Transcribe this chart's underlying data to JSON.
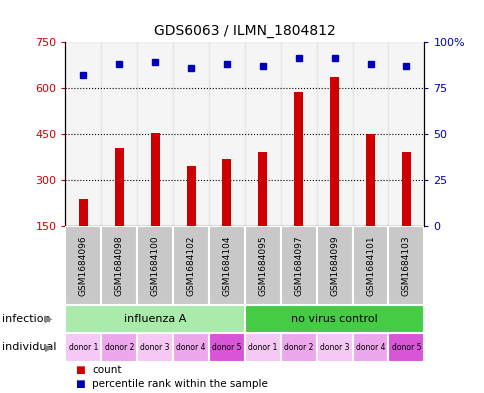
{
  "title": "GDS6063 / ILMN_1804812",
  "samples": [
    "GSM1684096",
    "GSM1684098",
    "GSM1684100",
    "GSM1684102",
    "GSM1684104",
    "GSM1684095",
    "GSM1684097",
    "GSM1684099",
    "GSM1684101",
    "GSM1684103"
  ],
  "counts": [
    240,
    405,
    452,
    345,
    370,
    390,
    585,
    635,
    450,
    390
  ],
  "percentile_ranks": [
    82,
    88,
    89,
    86,
    88,
    87,
    91,
    91,
    88,
    87
  ],
  "ylim_left": [
    150,
    750
  ],
  "ylim_right": [
    0,
    100
  ],
  "yticks_left": [
    150,
    300,
    450,
    600,
    750
  ],
  "yticks_right": [
    0,
    25,
    50,
    75,
    100
  ],
  "ytick_right_labels": [
    "0",
    "25",
    "50",
    "75",
    "100%"
  ],
  "infection_groups": [
    {
      "label": "influenza A",
      "start": 0,
      "end": 5,
      "color": "#AAEAAA"
    },
    {
      "label": "no virus control",
      "start": 5,
      "end": 10,
      "color": "#44CC44"
    }
  ],
  "individuals": [
    "donor 1",
    "donor 2",
    "donor 3",
    "donor 4",
    "donor 5",
    "donor 1",
    "donor 2",
    "donor 3",
    "donor 4",
    "donor 5"
  ],
  "indiv_colors": [
    "#F5C8F5",
    "#EDA8ED",
    "#F5C8F5",
    "#EDA8ED",
    "#D855D8",
    "#F5C8F5",
    "#EDA8ED",
    "#F5C8F5",
    "#EDA8ED",
    "#D855D8"
  ],
  "bar_color": "#CC0000",
  "dot_color": "#0000BB",
  "sample_bg_color": "#C8C8C8",
  "grid_color": "#000000",
  "grid_lines": [
    300,
    450,
    600
  ],
  "left_axis_color": "#CC0000",
  "right_axis_color": "#0000BB"
}
